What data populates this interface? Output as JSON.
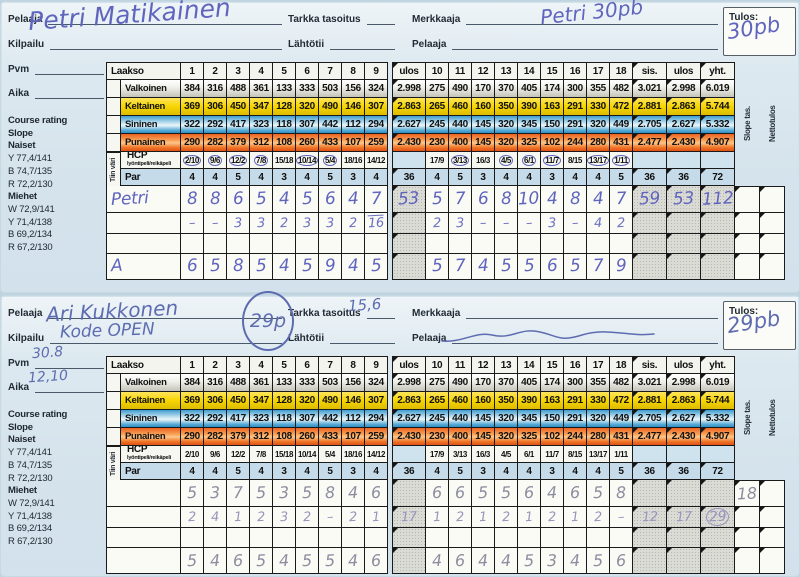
{
  "header_labels": {
    "pelaaja": "Pelaaja",
    "kilpailu": "Kilpailu",
    "pvm": "Pvm",
    "aika": "Aika",
    "tarkka_tasoitus": "Tarkka tasoitus",
    "lahtotii": "Lähtötii",
    "merkkaaja": "Merkkaaja",
    "pelaaja2": "Pelaaja",
    "tulos": "Tulos:"
  },
  "sidebar": {
    "items": [
      {
        "text": "Course rating",
        "bold": true
      },
      {
        "text": "Slope",
        "bold": true
      },
      {
        "text": "Naiset",
        "bold": true
      },
      {
        "text": "Y 77,4/141"
      },
      {
        "text": "B 74,7/135"
      },
      {
        "text": "R 72,2/130"
      },
      {
        "text": "Miehet",
        "bold": true
      },
      {
        "text": "W 72,9/141"
      },
      {
        "text": "Y 71,4/138"
      },
      {
        "text": "B 69,2/134"
      },
      {
        "text": "R 67,2/130"
      }
    ]
  },
  "course": {
    "name": "Laakso",
    "front_holes": [
      "1",
      "2",
      "3",
      "4",
      "5",
      "6",
      "7",
      "8",
      "9"
    ],
    "back_holes": [
      "10",
      "11",
      "12",
      "13",
      "14",
      "15",
      "16",
      "17",
      "18"
    ],
    "totals_labels": {
      "ulos": "ulos",
      "sis": "sis.",
      "ulos2": "ulos",
      "yht": "yht."
    },
    "vertical_labels": {
      "tiin_vari": "Tiin väri",
      "slope_tas": "Slope tas.",
      "nettotulos": "Nettotulos"
    },
    "tees": [
      {
        "name": "Valkoinen",
        "style": "tee-w",
        "front": [
          "384",
          "316",
          "488",
          "361",
          "133",
          "333",
          "503",
          "156",
          "324"
        ],
        "out": "2.998",
        "back": [
          "275",
          "490",
          "170",
          "370",
          "405",
          "174",
          "300",
          "355",
          "482"
        ],
        "in": "3.021",
        "out2": "2.998",
        "total": "6.019"
      },
      {
        "name": "Keltainen",
        "style": "tee-y",
        "front": [
          "369",
          "306",
          "450",
          "347",
          "128",
          "320",
          "490",
          "146",
          "307"
        ],
        "out": "2.863",
        "back": [
          "265",
          "460",
          "160",
          "350",
          "390",
          "163",
          "291",
          "330",
          "472"
        ],
        "in": "2.881",
        "out2": "2.863",
        "total": "5.744"
      },
      {
        "name": "Sininen",
        "style": "tee-b",
        "front": [
          "322",
          "292",
          "417",
          "323",
          "118",
          "307",
          "442",
          "112",
          "294"
        ],
        "out": "2.627",
        "back": [
          "245",
          "440",
          "145",
          "320",
          "345",
          "150",
          "291",
          "320",
          "449"
        ],
        "in": "2.705",
        "out2": "2.627",
        "total": "5.332"
      },
      {
        "name": "Punainen",
        "style": "tee-r",
        "front": [
          "290",
          "282",
          "379",
          "312",
          "108",
          "260",
          "433",
          "107",
          "259"
        ],
        "out": "2.430",
        "back": [
          "230",
          "400",
          "145",
          "320",
          "325",
          "102",
          "244",
          "280",
          "431"
        ],
        "in": "2.477",
        "out2": "2.430",
        "total": "4.907"
      }
    ],
    "hcp": {
      "label": "HCP",
      "sublabel": "lyöntipeli/reikäpeli",
      "front": [
        "2/10",
        "9/6",
        "12/2",
        "7/8",
        "15/18",
        "10/14",
        "5/4",
        "18/16",
        "14/12"
      ],
      "back": [
        "17/9",
        "3/13",
        "16/3",
        "4/5",
        "6/1",
        "11/7",
        "8/15",
        "13/17",
        "1/11"
      ]
    },
    "par": {
      "label": "Par",
      "front": [
        "4",
        "4",
        "5",
        "4",
        "3",
        "4",
        "5",
        "3",
        "4"
      ],
      "out": "36",
      "back": [
        "4",
        "5",
        "3",
        "4",
        "4",
        "3",
        "4",
        "4",
        "5"
      ],
      "in": "36",
      "out2": "36",
      "total": "72"
    }
  },
  "cards": [
    {
      "ink": "#5f65bd",
      "handwriting": {
        "player": "Petri Matikainen",
        "merkkaaja_note": "Petri 30pb",
        "tulos": "30pb"
      },
      "hcp_circled_front": [
        true,
        true,
        true,
        true,
        false,
        true,
        true,
        false,
        false
      ],
      "hcp_circled_back": [
        false,
        true,
        false,
        true,
        true,
        true,
        false,
        true,
        true
      ],
      "rows": [
        {
          "name": "Petri",
          "size": 17,
          "ink": "#5f65bd",
          "front": [
            "8",
            "8",
            "6",
            "5",
            "4",
            "5",
            "6",
            "4",
            "7"
          ],
          "out": "53",
          "back": [
            "5",
            "7",
            "6",
            "8",
            "10",
            "4",
            "8",
            "4",
            "7"
          ],
          "in": "59",
          "out2": "53",
          "total": "112",
          "slope": "",
          "netto": ""
        },
        {
          "name": "",
          "size": 13,
          "ink": "#6a6fc0",
          "front": [
            "–",
            "–",
            "3",
            "3",
            "2",
            "3",
            "3",
            "2",
            "16"
          ],
          "overline_front_idx": 8,
          "out": "",
          "back": [
            "2",
            "3",
            "–",
            "–",
            "–",
            "3",
            "–",
            "4",
            "2"
          ],
          "in": "",
          "out2": "",
          "total": "",
          "slope": "",
          "netto": ""
        },
        {},
        {
          "name": "A",
          "size": 17,
          "ink": "#5f65bd",
          "front": [
            "6",
            "5",
            "8",
            "5",
            "4",
            "5",
            "9",
            "4",
            "5"
          ],
          "out": "",
          "back": [
            "5",
            "7",
            "4",
            "5",
            "5",
            "6",
            "5",
            "7",
            "9"
          ],
          "in": "",
          "out2": "",
          "total": "",
          "slope": "",
          "netto": ""
        }
      ]
    },
    {
      "ink": "#5d6cb0",
      "pencil": "#8c8d9f",
      "handwriting": {
        "player": "Ari Kukkonen",
        "player_points": "29p",
        "kilpailu": "Kode OPEN",
        "tarkka_tasoitus": "15,6",
        "pvm": "30.8",
        "aika": "12,10",
        "tulos": "29pb"
      },
      "rows": [
        {
          "name": "",
          "size": 16,
          "ink": "#8c8d9f",
          "front": [
            "5",
            "3",
            "7",
            "5",
            "3",
            "5",
            "8",
            "4",
            "6"
          ],
          "out": "",
          "back": [
            "6",
            "6",
            "5",
            "5",
            "6",
            "4",
            "6",
            "5",
            "8"
          ],
          "in": "",
          "out2": "",
          "total": "",
          "slope": "18",
          "netto": ""
        },
        {
          "name": "",
          "size": 13,
          "ink": "#9a93bb",
          "front": [
            "2",
            "4",
            "1",
            "2",
            "3",
            "2",
            "–",
            "2",
            "1"
          ],
          "out": "17",
          "back": [
            "1",
            "2",
            "1",
            "2",
            "1",
            "2",
            "1",
            "2",
            "–"
          ],
          "in": "12",
          "out2": "17",
          "total": "29",
          "total_circled": true,
          "slope": "",
          "netto": ""
        },
        {},
        {
          "name": "",
          "size": 16,
          "ink": "#8c8d9f",
          "front": [
            "5",
            "4",
            "6",
            "5",
            "4",
            "5",
            "5",
            "4",
            "6"
          ],
          "out": "",
          "back": [
            "4",
            "6",
            "4",
            "4",
            "5",
            "3",
            "4",
            "5",
            "6"
          ],
          "in": "",
          "out2": "",
          "total": "",
          "slope": "",
          "netto": ""
        }
      ]
    }
  ]
}
